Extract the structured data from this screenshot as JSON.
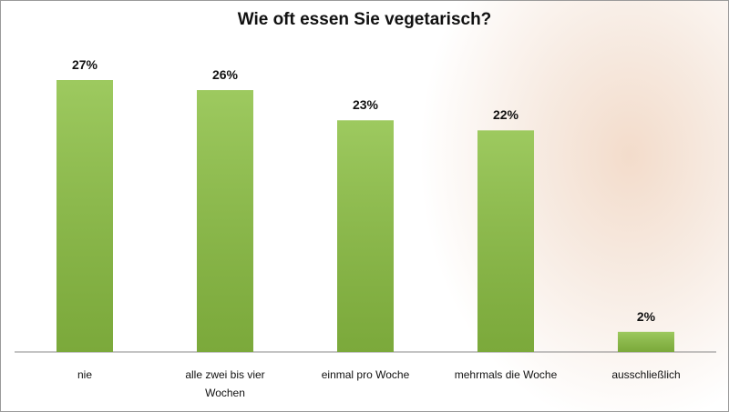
{
  "chart_data": {
    "type": "bar",
    "title": "Wie oft essen Sie vegetarisch?",
    "categories": [
      "nie",
      "alle zwei bis vier Wochen",
      "einmal pro Woche",
      "mehrmals die Woche",
      "ausschließlich"
    ],
    "values": [
      27,
      26,
      23,
      22,
      2
    ],
    "value_labels": [
      "27%",
      "26%",
      "23%",
      "22%",
      "2%"
    ],
    "color": "#8cc043"
  }
}
